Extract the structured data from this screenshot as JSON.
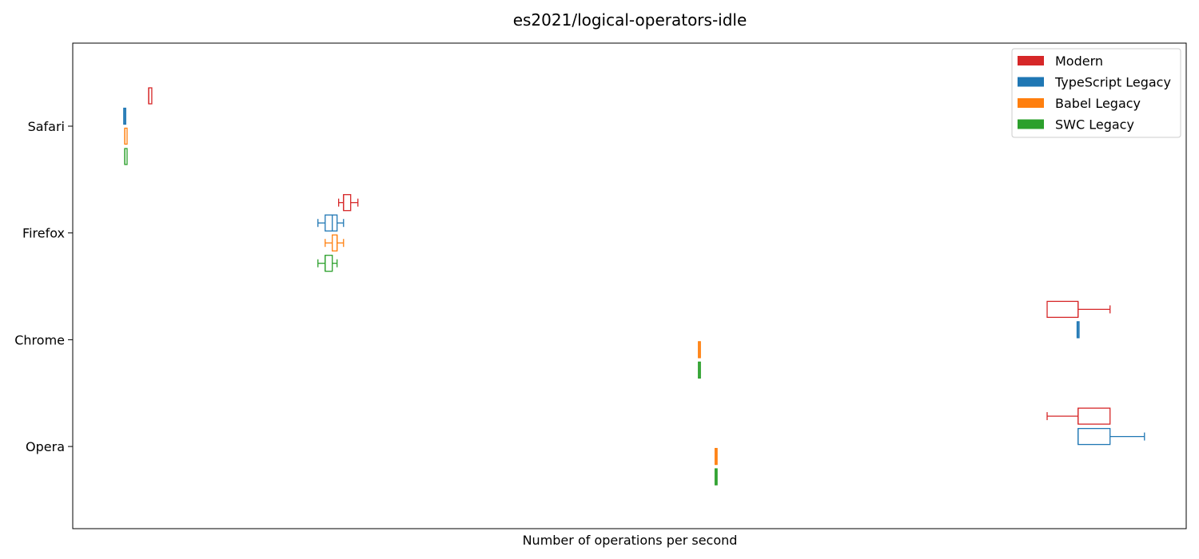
{
  "chart_data": {
    "type": "boxplot",
    "orientation": "horizontal",
    "title": "es2021/logical-operators-idle",
    "xlabel": "Number of operations per second",
    "ylabel": "",
    "x_ticks_shown": false,
    "grid": false,
    "legend_position": "top-right",
    "categories": [
      "Safari",
      "Firefox",
      "Chrome",
      "Opera"
    ],
    "series": [
      {
        "name": "Modern",
        "color": "#d62728",
        "boxes": [
          {
            "category": "Safari",
            "whislo": 0.0682,
            "q1": 0.0682,
            "med": 0.0682,
            "q3": 0.071,
            "whishi": 0.071
          },
          {
            "category": "Firefox",
            "whislo": 0.2388,
            "q1": 0.2432,
            "med": 0.2432,
            "q3": 0.2496,
            "whishi": 0.2561
          },
          {
            "category": "Chrome",
            "whislo": 0.8751,
            "q1": 0.8751,
            "med": 0.9029,
            "q3": 0.9029,
            "whishi": 0.9316
          },
          {
            "category": "Opera",
            "whislo": 0.8751,
            "q1": 0.9029,
            "med": 0.9029,
            "q3": 0.9316,
            "whishi": 0.9316
          }
        ]
      },
      {
        "name": "TypeScript Legacy",
        "color": "#1f77b4",
        "boxes": [
          {
            "category": "Safari",
            "whislo": 0.0467,
            "q1": 0.0467,
            "med": 0.0467,
            "q3": 0.0467,
            "whishi": 0.0467
          },
          {
            "category": "Firefox",
            "whislo": 0.2202,
            "q1": 0.2267,
            "med": 0.2331,
            "q3": 0.2374,
            "whishi": 0.2432
          },
          {
            "category": "Chrome",
            "whislo": 0.9029,
            "q1": 0.9029,
            "med": 0.9029,
            "q3": 0.9029,
            "whishi": 0.9029
          },
          {
            "category": "Opera",
            "whislo": 0.9029,
            "q1": 0.9029,
            "med": 0.9029,
            "q3": 0.9316,
            "whishi": 0.9625
          }
        ]
      },
      {
        "name": "Babel Legacy",
        "color": "#ff7f0e",
        "boxes": [
          {
            "category": "Safari",
            "whislo": 0.0467,
            "q1": 0.0467,
            "med": 0.0467,
            "q3": 0.0488,
            "whishi": 0.0488
          },
          {
            "category": "Firefox",
            "whislo": 0.2267,
            "q1": 0.2331,
            "med": 0.2374,
            "q3": 0.2374,
            "whishi": 0.2432
          },
          {
            "category": "Chrome",
            "whislo": 0.5628,
            "q1": 0.5628,
            "med": 0.5628,
            "q3": 0.5628,
            "whishi": 0.5628
          },
          {
            "category": "Opera",
            "whislo": 0.5778,
            "q1": 0.5778,
            "med": 0.5778,
            "q3": 0.5778,
            "whishi": 0.5778
          }
        ]
      },
      {
        "name": "SWC Legacy",
        "color": "#2ca02c",
        "boxes": [
          {
            "category": "Safari",
            "whislo": 0.0467,
            "q1": 0.0467,
            "med": 0.0467,
            "q3": 0.0488,
            "whishi": 0.0488
          },
          {
            "category": "Firefox",
            "whislo": 0.2202,
            "q1": 0.2267,
            "med": 0.2267,
            "q3": 0.2331,
            "whishi": 0.2374
          },
          {
            "category": "Chrome",
            "whislo": 0.5628,
            "q1": 0.5628,
            "med": 0.5628,
            "q3": 0.5628,
            "whishi": 0.5628
          },
          {
            "category": "Opera",
            "whislo": 0.5778,
            "q1": 0.5778,
            "med": 0.5778,
            "q3": 0.5778,
            "whishi": 0.5778
          }
        ]
      }
    ],
    "xlim": [
      0,
      1.0
    ]
  }
}
